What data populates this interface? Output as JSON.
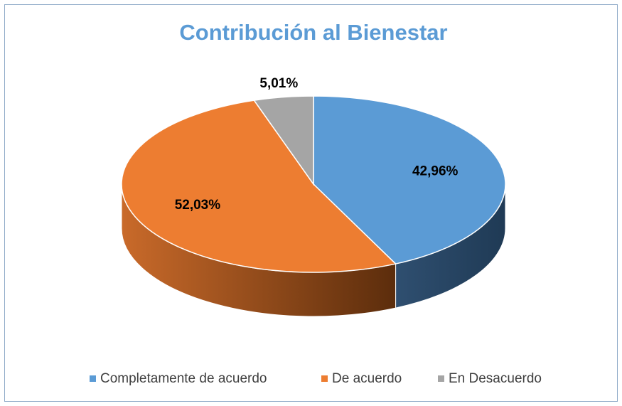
{
  "chart_data": {
    "type": "pie3d",
    "title": "Contribución al Bienestar",
    "categories": [
      "Completamente de acuerdo",
      "De acuerdo",
      "En Desacuerdo"
    ],
    "values": [
      42.96,
      52.03,
      5.01
    ],
    "value_labels": [
      "42,96%",
      "52,03%",
      "5,01%"
    ],
    "colors": [
      "#5b9bd5",
      "#ed7d31",
      "#a5a5a5"
    ],
    "legend": "bottom"
  }
}
